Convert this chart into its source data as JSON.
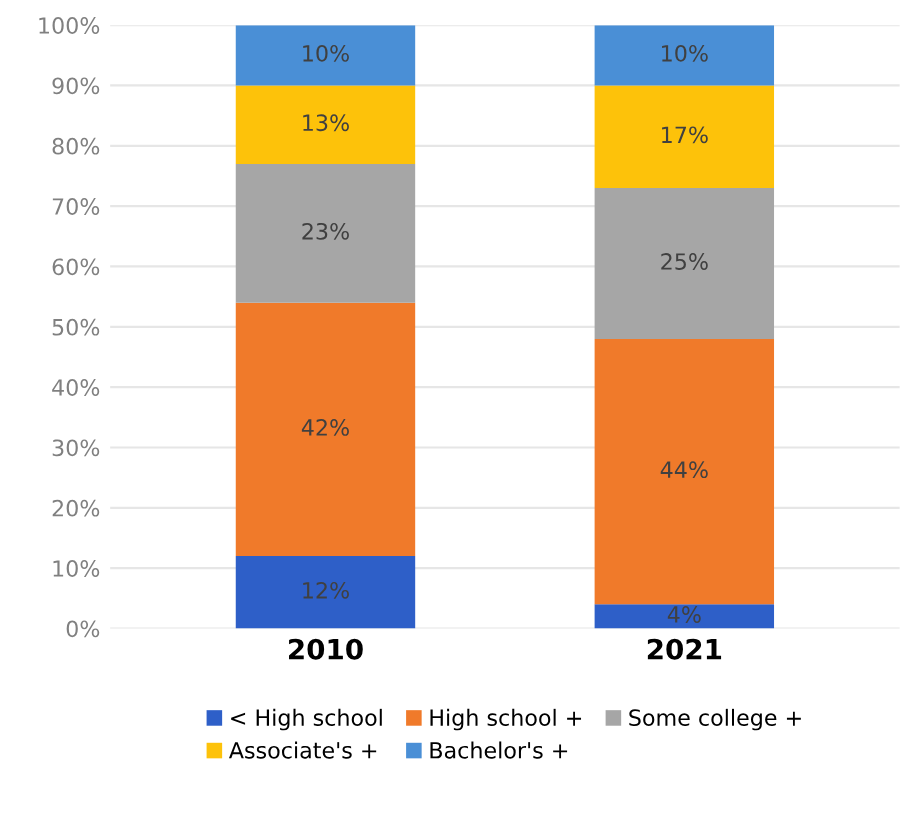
{
  "chart_data": {
    "type": "bar",
    "stacked": true,
    "categories": [
      "2010",
      "2021"
    ],
    "series": [
      {
        "name": "< High school",
        "color": "#2e5fc8",
        "values": [
          12,
          4
        ],
        "value_labels": [
          "12%",
          "4%"
        ]
      },
      {
        "name": "High school +",
        "color": "#f07a2a",
        "values": [
          42,
          44
        ],
        "value_labels": [
          "42%",
          "44%"
        ]
      },
      {
        "name": "Some college +",
        "color": "#a6a6a6",
        "values": [
          23,
          25
        ],
        "value_labels": [
          "23%",
          "25%"
        ]
      },
      {
        "name": "Associate's +",
        "color": "#fdc20a",
        "values": [
          13,
          17
        ],
        "value_labels": [
          "13%",
          "17%"
        ]
      },
      {
        "name": "Bachelor's +",
        "color": "#4a8fd6",
        "values": [
          10,
          10
        ],
        "value_labels": [
          "10%",
          "10%"
        ]
      }
    ],
    "ylim": [
      0,
      100
    ],
    "yticks": [
      {
        "value": 0,
        "label": "0%"
      },
      {
        "value": 10,
        "label": "10%"
      },
      {
        "value": 20,
        "label": "20%"
      },
      {
        "value": 30,
        "label": "30%"
      },
      {
        "value": 40,
        "label": "40%"
      },
      {
        "value": 50,
        "label": "50%"
      },
      {
        "value": 60,
        "label": "60%"
      },
      {
        "value": 70,
        "label": "70%"
      },
      {
        "value": 80,
        "label": "80%"
      },
      {
        "value": 90,
        "label": "90%"
      },
      {
        "value": 100,
        "label": "100%"
      }
    ],
    "grid": "y",
    "legend": "bottom"
  }
}
